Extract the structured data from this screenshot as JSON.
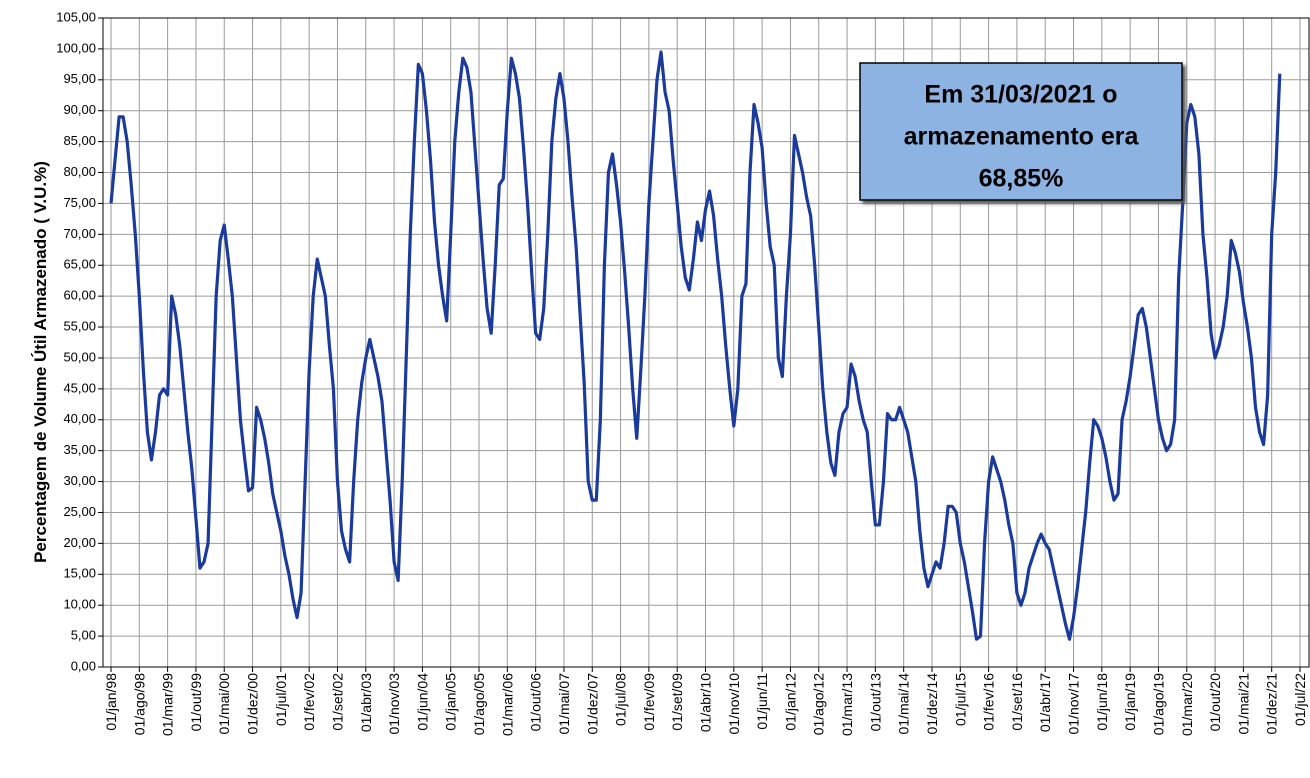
{
  "chart_data": {
    "type": "line",
    "y_label": "Percentagem de Volume Útil Armazenado ( V.U.%)",
    "annotation": [
      "Em 31/03/2021 o",
      "armazenamento era",
      "68,85%"
    ],
    "color": "#1a3a9c",
    "grid": true,
    "ylim": [
      0,
      105
    ],
    "yticks": [
      {
        "value": 0,
        "label": "0,00"
      },
      {
        "value": 5,
        "label": "5,00"
      },
      {
        "value": 10,
        "label": "10,00"
      },
      {
        "value": 15,
        "label": "15,00"
      },
      {
        "value": 20,
        "label": "20,00"
      },
      {
        "value": 25,
        "label": "25,00"
      },
      {
        "value": 30,
        "label": "30,00"
      },
      {
        "value": 35,
        "label": "35,00"
      },
      {
        "value": 40,
        "label": "40,00"
      },
      {
        "value": 45,
        "label": "45,00"
      },
      {
        "value": 50,
        "label": "50,00"
      },
      {
        "value": 55,
        "label": "55,00"
      },
      {
        "value": 60,
        "label": "60,00"
      },
      {
        "value": 65,
        "label": "65,00"
      },
      {
        "value": 70,
        "label": "70,00"
      },
      {
        "value": 75,
        "label": "75,00"
      },
      {
        "value": 80,
        "label": "80,00"
      },
      {
        "value": 85,
        "label": "85,00"
      },
      {
        "value": 90,
        "label": "90,00"
      },
      {
        "value": 95,
        "label": "95,00"
      },
      {
        "value": 100,
        "label": "100,00"
      },
      {
        "value": 105,
        "label": "105,00"
      }
    ],
    "categories": [
      "01/jan/98",
      null,
      null,
      null,
      null,
      null,
      null,
      "01/ago/98",
      null,
      null,
      null,
      null,
      null,
      null,
      "01/mar/99",
      null,
      null,
      null,
      null,
      null,
      null,
      "01/out/99",
      null,
      null,
      null,
      null,
      null,
      null,
      "01/mai/00",
      null,
      null,
      null,
      null,
      null,
      null,
      "01/dez/00",
      null,
      null,
      null,
      null,
      null,
      null,
      "01/jul/01",
      null,
      null,
      null,
      null,
      null,
      null,
      "01/fev/02",
      null,
      null,
      null,
      null,
      null,
      null,
      "01/set/02",
      null,
      null,
      null,
      null,
      null,
      null,
      "01/abr/03",
      null,
      null,
      null,
      null,
      null,
      null,
      "01/nov/03",
      null,
      null,
      null,
      null,
      null,
      null,
      "01/jun/04",
      null,
      null,
      null,
      null,
      null,
      null,
      "01/jan/05",
      null,
      null,
      null,
      null,
      null,
      null,
      "01/ago/05",
      null,
      null,
      null,
      null,
      null,
      null,
      "01/mar/06",
      null,
      null,
      null,
      null,
      null,
      null,
      "01/out/06",
      null,
      null,
      null,
      null,
      null,
      null,
      "01/mai/07",
      null,
      null,
      null,
      null,
      null,
      null,
      "01/dez/07",
      null,
      null,
      null,
      null,
      null,
      null,
      "01/jul/08",
      null,
      null,
      null,
      null,
      null,
      null,
      "01/fev/09",
      null,
      null,
      null,
      null,
      null,
      null,
      "01/set/09",
      null,
      null,
      null,
      null,
      null,
      null,
      "01/abr/10",
      null,
      null,
      null,
      null,
      null,
      null,
      "01/nov/10",
      null,
      null,
      null,
      null,
      null,
      null,
      "01/jun/11",
      null,
      null,
      null,
      null,
      null,
      null,
      "01/jan/12",
      null,
      null,
      null,
      null,
      null,
      null,
      "01/ago/12",
      null,
      null,
      null,
      null,
      null,
      null,
      "01/mar/13",
      null,
      null,
      null,
      null,
      null,
      null,
      "01/out/13",
      null,
      null,
      null,
      null,
      null,
      null,
      "01/mai/14",
      null,
      null,
      null,
      null,
      null,
      null,
      "01/dez/14",
      null,
      null,
      null,
      null,
      null,
      null,
      "01/jul/15",
      null,
      null,
      null,
      null,
      null,
      null,
      "01/fev/16",
      null,
      null,
      null,
      null,
      null,
      null,
      "01/set/16",
      null,
      null,
      null,
      null,
      null,
      null,
      "01/abr/17",
      null,
      null,
      null,
      null,
      null,
      null,
      "01/nov/17",
      null,
      null,
      null,
      null,
      null,
      null,
      "01/jun/18",
      null,
      null,
      null,
      null,
      null,
      null,
      "01/jan/19",
      null,
      null,
      null,
      null,
      null,
      null,
      "01/ago/19",
      null,
      null,
      null,
      null,
      null,
      null,
      "01/mar/20",
      null,
      null,
      null,
      null,
      null,
      null,
      "01/out/20",
      null,
      null,
      null,
      null,
      null,
      null,
      "01/mai/21",
      null,
      null,
      null,
      null,
      null,
      null,
      "01/dez/21",
      null,
      null,
      null,
      null,
      null,
      null,
      "01/jul/22"
    ],
    "values": [
      75,
      82,
      89,
      89,
      85,
      78,
      70,
      60,
      48,
      38,
      33.5,
      38,
      44,
      45,
      44,
      60,
      57,
      52,
      45,
      38,
      32,
      24,
      16,
      17,
      20,
      40,
      60,
      69,
      71.5,
      66,
      60,
      50,
      40,
      34,
      28.5,
      29,
      42,
      40,
      37,
      33,
      28,
      25,
      22,
      18,
      15,
      11,
      8,
      12,
      30,
      48,
      60,
      66,
      63,
      60,
      52,
      45,
      30,
      22,
      19,
      17,
      30,
      40,
      46,
      50,
      53,
      50,
      47,
      43,
      35,
      27,
      17,
      14,
      30,
      50,
      70,
      85,
      97.5,
      96,
      90,
      82,
      72,
      65,
      60,
      56,
      70,
      85,
      93,
      98.5,
      97,
      93,
      84,
      75,
      66,
      58,
      54,
      65,
      78,
      79,
      90,
      98.5,
      96,
      92,
      84,
      75,
      64,
      54,
      53,
      58,
      70,
      85,
      92,
      96,
      92,
      85,
      76,
      68,
      57,
      46,
      30,
      27,
      27,
      40,
      65,
      80,
      83,
      78,
      72,
      64,
      55,
      45,
      37,
      48,
      60,
      75,
      85,
      95,
      99.5,
      93,
      90,
      82,
      75,
      68,
      63,
      61,
      66,
      72,
      69,
      74,
      77,
      73,
      66,
      60,
      52,
      45,
      39,
      45,
      60,
      62,
      80,
      91,
      88,
      84,
      75,
      68,
      65,
      50,
      47,
      60,
      70,
      86,
      83,
      80,
      76,
      73,
      65,
      55,
      45,
      38,
      33,
      31,
      38,
      41,
      42,
      49,
      47,
      43,
      40,
      38,
      30,
      23,
      23,
      30,
      41,
      40,
      40,
      42,
      40,
      38,
      34,
      30,
      22,
      16,
      13,
      15,
      17,
      16,
      20,
      26,
      26,
      25,
      20,
      17,
      13,
      9,
      4.5,
      5,
      20,
      30,
      34,
      32,
      30,
      27,
      23,
      20,
      12,
      10,
      12,
      16,
      18,
      20,
      21.5,
      20,
      19,
      16,
      13,
      10,
      7,
      4.5,
      8,
      13,
      19,
      25,
      33,
      40,
      39,
      37,
      34,
      30,
      27,
      28,
      40,
      43,
      47,
      52,
      57,
      58,
      55,
      50,
      45,
      40,
      37,
      35,
      36,
      40,
      63,
      75,
      88,
      91,
      89,
      83,
      70,
      63,
      54,
      50,
      52,
      55,
      60,
      69,
      67,
      64,
      59,
      55,
      50,
      42,
      38,
      36,
      44,
      70,
      80,
      96,
      null,
      null,
      null,
      null,
      null
    ]
  }
}
